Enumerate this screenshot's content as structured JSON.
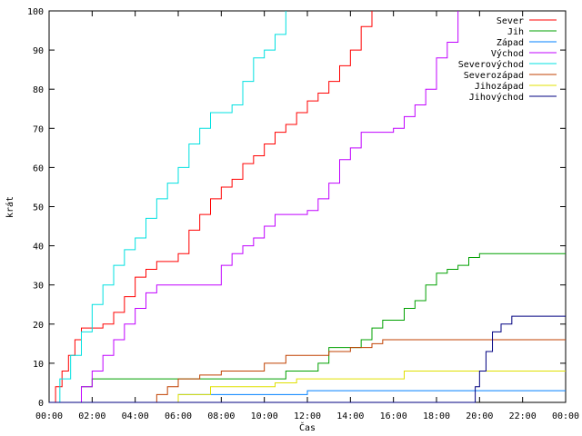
{
  "chart_data": {
    "type": "line",
    "title": "",
    "xlabel": "Čas",
    "ylabel": "krát",
    "xlim": [
      0,
      24
    ],
    "ylim": [
      0,
      100
    ],
    "x_ticks": [
      "00:00",
      "02:00",
      "04:00",
      "06:00",
      "08:00",
      "10:00",
      "12:00",
      "14:00",
      "16:00",
      "18:00",
      "20:00",
      "22:00",
      "00:00"
    ],
    "y_ticks": [
      0,
      10,
      20,
      30,
      40,
      50,
      60,
      70,
      80,
      90,
      100
    ],
    "grid": false,
    "legend_position": "top-right",
    "series": [
      {
        "name": "Sever",
        "color": "#ff0000",
        "x": [
          0,
          0.3,
          0.6,
          0.9,
          1.2,
          1.5,
          2.5,
          3.0,
          3.5,
          4.0,
          4.5,
          5.0,
          6.0,
          6.5,
          7.0,
          7.5,
          8.0,
          8.5,
          9.0,
          9.5,
          10.0,
          10.5,
          11.0,
          11.5,
          12.0,
          12.5,
          13.0,
          13.5,
          14.0,
          14.5,
          15.0
        ],
        "values": [
          0,
          4,
          8,
          12,
          16,
          19,
          20,
          23,
          27,
          32,
          34,
          36,
          38,
          44,
          48,
          52,
          55,
          57,
          61,
          63,
          66,
          69,
          71,
          74,
          77,
          79,
          82,
          86,
          90,
          96,
          100
        ]
      },
      {
        "name": "Jih",
        "color": "#00a000",
        "x": [
          0,
          1.5,
          2.0,
          7.0,
          10.5,
          11.0,
          12.5,
          13.0,
          14.5,
          15.0,
          15.5,
          16.5,
          17.0,
          17.5,
          18.0,
          18.5,
          19.0,
          19.5,
          20.0,
          20.5,
          24.0
        ],
        "values": [
          0,
          4,
          6,
          6,
          6,
          8,
          10,
          14,
          16,
          19,
          21,
          24,
          26,
          30,
          33,
          34,
          35,
          37,
          38,
          38,
          38
        ]
      },
      {
        "name": "Západ",
        "color": "#0080ff",
        "x": [
          0,
          5.8,
          6.0,
          10.5,
          12.0,
          17.0,
          24.0
        ],
        "values": [
          0,
          0,
          2,
          2,
          3,
          3,
          3
        ]
      },
      {
        "name": "Východ",
        "color": "#c000ff",
        "x": [
          0,
          1.5,
          2.0,
          2.5,
          3.0,
          3.5,
          4.0,
          4.5,
          5.0,
          5.5,
          7.5,
          8.0,
          8.5,
          9.0,
          9.5,
          10.0,
          10.5,
          11.5,
          12.0,
          12.5,
          13.0,
          13.5,
          14.0,
          14.5,
          15.0,
          15.5,
          16.0,
          16.5,
          17.0,
          17.5,
          18.0,
          18.5,
          19.0
        ],
        "values": [
          0,
          4,
          8,
          12,
          16,
          20,
          24,
          28,
          30,
          30,
          30,
          35,
          38,
          40,
          42,
          45,
          48,
          48,
          49,
          52,
          56,
          62,
          65,
          69,
          69,
          69,
          70,
          73,
          76,
          80,
          88,
          92,
          100
        ]
      },
      {
        "name": "Severovýchod",
        "color": "#00e0e0",
        "x": [
          0,
          0.5,
          1.0,
          1.5,
          2.0,
          2.5,
          3.0,
          3.5,
          4.0,
          4.5,
          5.0,
          5.5,
          6.0,
          6.5,
          7.0,
          7.5,
          8.0,
          8.5,
          9.0,
          9.5,
          10.0,
          10.5,
          11.0
        ],
        "values": [
          0,
          6,
          12,
          18,
          25,
          30,
          35,
          39,
          42,
          47,
          52,
          56,
          60,
          66,
          70,
          74,
          74,
          76,
          82,
          88,
          90,
          94,
          100
        ]
      },
      {
        "name": "Severozápad",
        "color": "#c04000",
        "x": [
          0,
          4.8,
          5.0,
          5.5,
          6.0,
          7.0,
          8.0,
          9.0,
          10.0,
          11.0,
          12.0,
          13.0,
          14.0,
          15.0,
          15.5,
          24.0
        ],
        "values": [
          0,
          0,
          2,
          4,
          6,
          7,
          8,
          8,
          10,
          12,
          12,
          13,
          14,
          15,
          16,
          16
        ]
      },
      {
        "name": "Jihozápad",
        "color": "#e0e000",
        "x": [
          0,
          5.7,
          6.0,
          7.5,
          8.0,
          10.5,
          11.5,
          12.5,
          16.5,
          24.0
        ],
        "values": [
          0,
          0,
          2,
          4,
          4,
          5,
          6,
          6,
          8,
          8
        ]
      },
      {
        "name": "Jihovýchod",
        "color": "#000080",
        "x": [
          0,
          19.5,
          19.8,
          20.0,
          20.3,
          20.6,
          21.0,
          21.5,
          24.0
        ],
        "values": [
          0,
          0,
          4,
          8,
          13,
          18,
          20,
          22,
          22
        ]
      }
    ]
  }
}
